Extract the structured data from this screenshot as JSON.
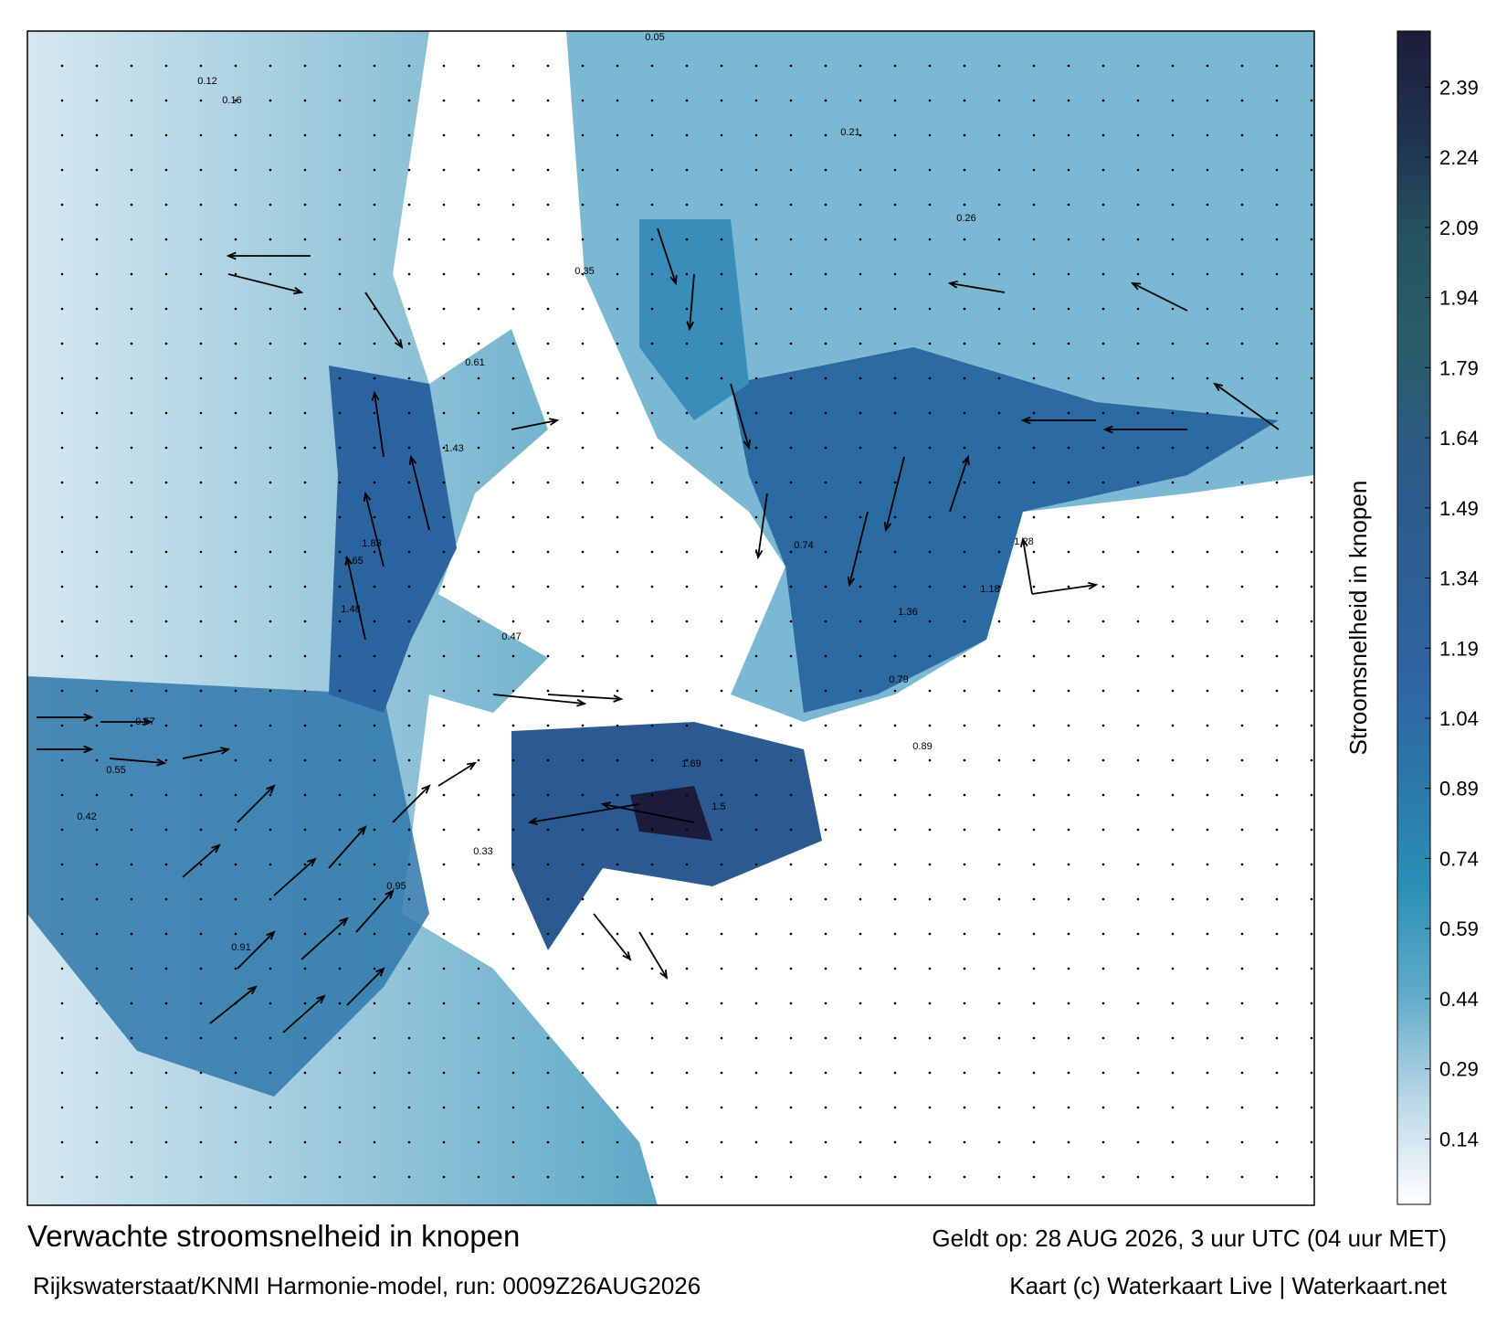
{
  "map": {
    "labels": [
      "1.83",
      "1.48",
      "1.65",
      "1.43",
      "1.5",
      "1.69",
      "1.36",
      "1.28",
      "1.18",
      "0.95",
      "0.91",
      "0.79",
      "0.57",
      "0.55",
      "0.42",
      "0.33",
      "0.26",
      "0.21",
      "0.16",
      "0.12",
      "0.05",
      "0.89",
      "0.74",
      "0.61",
      "0.47",
      "0.35"
    ]
  },
  "colorbar": {
    "label": "Stroomsnelheid in knopen",
    "lim": [
      0,
      2.51
    ],
    "ticks": [
      0.14,
      0.29,
      0.44,
      0.59,
      0.74,
      0.89,
      1.04,
      1.19,
      1.34,
      1.49,
      1.64,
      1.79,
      1.94,
      2.09,
      2.24,
      2.39
    ],
    "colors": [
      "#ffffff",
      "#b7d7e6",
      "#5eaac8",
      "#2a8fb5",
      "#2b77a8",
      "#2f64a0",
      "#2e5e94",
      "#2c5a86",
      "#2a5d6a",
      "#265461",
      "#1f3350",
      "#1c1c3a"
    ]
  },
  "footer": {
    "title": "Verwachte stroomsnelheid in knopen",
    "valid": "Geldt op: 28 AUG 2026, 3 uur UTC (04 uur MET)",
    "model": "Rijkswaterstaat/KNMI Harmonie-model, run: 0009Z26AUG2026",
    "credit": "Kaart (c) Waterkaart Live | Waterkaart.net"
  }
}
